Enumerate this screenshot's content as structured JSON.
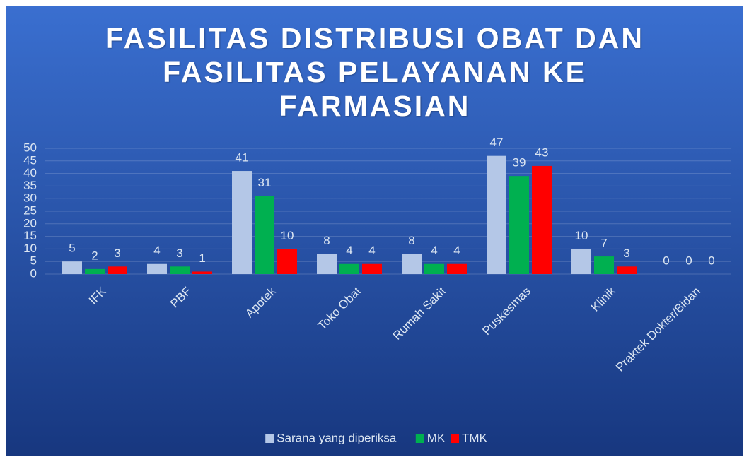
{
  "chart_data": {
    "type": "bar",
    "title": "FASILITAS DISTRIBUSI OBAT DAN FASILITAS PELAYANAN KE FARMASIAN",
    "categories": [
      "IFK",
      "PBF",
      "Apotek",
      "Toko Obat",
      "Rumah Sakit",
      "Puskesmas",
      "Klinik",
      "Praktek Dokter/Bidan"
    ],
    "series": [
      {
        "name": "Sarana yang diperiksa",
        "color": "#b4c7e7",
        "values": [
          5,
          4,
          41,
          8,
          8,
          47,
          10,
          0
        ]
      },
      {
        "name": "MK",
        "color": "#00b050",
        "values": [
          2,
          3,
          31,
          4,
          4,
          39,
          7,
          0
        ]
      },
      {
        "name": "TMK",
        "color": "#ff0000",
        "values": [
          3,
          1,
          10,
          4,
          4,
          43,
          3,
          0
        ]
      }
    ],
    "ylim": [
      0,
      50
    ],
    "yticks": [
      0,
      5,
      10,
      15,
      20,
      25,
      30,
      35,
      40,
      45,
      50
    ],
    "grid": true,
    "legend": "bottom"
  }
}
